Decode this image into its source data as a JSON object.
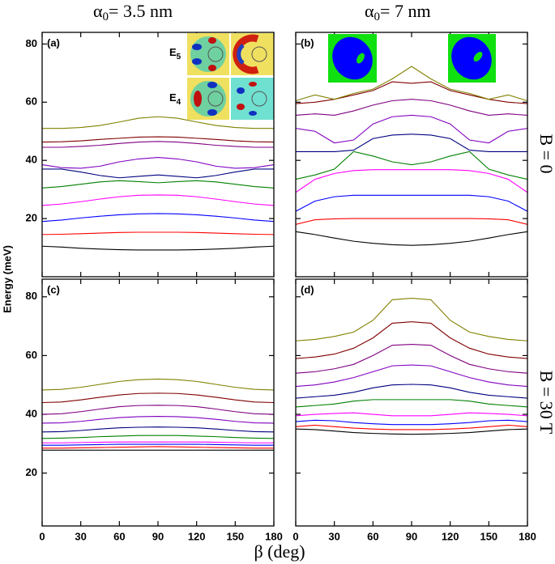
{
  "column_titles": [
    {
      "symbol": "α",
      "subscript": "0",
      "text": "= 3.5 nm"
    },
    {
      "symbol": "α",
      "subscript": "0",
      "text": "= 7 nm"
    }
  ],
  "row_titles": [
    "B = 0",
    "B = 30 T"
  ],
  "y_label": "Energy (meV)",
  "x_label": "β (deg)",
  "inset_labels": [
    {
      "text": "E",
      "subscript": "5"
    },
    {
      "text": "E",
      "subscript": "4"
    }
  ],
  "chart_data": [
    {
      "type": "line",
      "panel_label": "(a)",
      "x": [
        0,
        15,
        30,
        45,
        60,
        75,
        90,
        105,
        120,
        135,
        150,
        165,
        180
      ],
      "xlim": [
        0,
        180
      ],
      "xticks": [
        0,
        30,
        60,
        90,
        120,
        150,
        180
      ],
      "ylim": [
        0,
        84
      ],
      "yticks": [
        20,
        40,
        60,
        80
      ],
      "series": [
        {
          "color": "#000000",
          "values": [
            10.5,
            10.2,
            9.8,
            9.5,
            9.3,
            9.2,
            9.2,
            9.2,
            9.3,
            9.5,
            9.8,
            10.2,
            10.5
          ]
        },
        {
          "color": "#ff0000",
          "values": [
            14.5,
            14.6,
            14.8,
            15,
            15.2,
            15.3,
            15.3,
            15.3,
            15.2,
            15,
            14.8,
            14.6,
            14.5
          ]
        },
        {
          "color": "#0000ff",
          "values": [
            19,
            19.5,
            20.2,
            20.8,
            21.3,
            21.6,
            21.7,
            21.6,
            21.3,
            20.8,
            20.2,
            19.5,
            19
          ]
        },
        {
          "color": "#ff00ff",
          "values": [
            24.5,
            25,
            25.8,
            26.7,
            27.5,
            28,
            28.1,
            28,
            27.5,
            26.7,
            25.8,
            25,
            24.5
          ]
        },
        {
          "color": "#008000",
          "values": [
            30.5,
            31,
            31.8,
            32.6,
            33,
            32.7,
            32.3,
            32.7,
            33,
            32.6,
            31.8,
            31,
            30.5
          ]
        },
        {
          "color": "#000080",
          "values": [
            37,
            37,
            36,
            34.8,
            34,
            34.5,
            35,
            34.5,
            34,
            34.8,
            36,
            37,
            37
          ]
        },
        {
          "color": "#8000c0",
          "values": [
            38.5,
            37.5,
            37.3,
            38,
            39.5,
            40.5,
            41,
            40.5,
            39.5,
            38,
            37.3,
            37.5,
            38.5
          ]
        },
        {
          "color": "#800080",
          "values": [
            44.5,
            44.5,
            44.8,
            45.2,
            45.8,
            46.3,
            46.5,
            46.3,
            45.8,
            45.2,
            44.8,
            44.5,
            44.5
          ]
        },
        {
          "color": "#800000",
          "values": [
            46.3,
            46.4,
            46.7,
            47.2,
            47.6,
            48,
            48.1,
            48,
            47.6,
            47.2,
            46.7,
            46.4,
            46.3
          ]
        },
        {
          "color": "#808000",
          "values": [
            51,
            51,
            51.3,
            52,
            53.2,
            54.5,
            55,
            54.5,
            53.2,
            52,
            51.3,
            51,
            51
          ]
        }
      ]
    },
    {
      "type": "line",
      "panel_label": "(b)",
      "x": [
        0,
        15,
        30,
        45,
        60,
        75,
        90,
        105,
        120,
        135,
        150,
        165,
        180
      ],
      "xlim": [
        0,
        180
      ],
      "xticks": [
        0,
        30,
        60,
        90,
        120,
        150,
        180
      ],
      "ylim": [
        0,
        84
      ],
      "yticks": [
        20,
        40,
        60,
        80
      ],
      "series": [
        {
          "color": "#000000",
          "values": [
            15.5,
            14.5,
            13.3,
            12.2,
            11.5,
            11,
            10.8,
            11,
            11.5,
            12.2,
            13.3,
            14.5,
            15.5
          ]
        },
        {
          "color": "#ff0000",
          "values": [
            18,
            19.6,
            19.9,
            20,
            20,
            20,
            20,
            20,
            20,
            20,
            19.9,
            19.6,
            18
          ]
        },
        {
          "color": "#0000ff",
          "values": [
            22.5,
            26,
            27.5,
            28,
            28,
            28,
            28,
            28,
            28,
            28,
            27.5,
            26,
            22.5
          ]
        },
        {
          "color": "#ff00ff",
          "values": [
            29,
            33.5,
            35.5,
            36.5,
            36.8,
            36.8,
            36.8,
            36.8,
            36.8,
            36.5,
            35.5,
            33.5,
            29
          ]
        },
        {
          "color": "#008000",
          "values": [
            33.5,
            35,
            37,
            43,
            41.5,
            39.5,
            38.5,
            39.5,
            41.5,
            43,
            37,
            35,
            33.5
          ]
        },
        {
          "color": "#000080",
          "values": [
            43,
            43,
            43,
            43.5,
            47.5,
            48.7,
            49,
            48.7,
            47.5,
            43.5,
            43,
            43,
            43
          ]
        },
        {
          "color": "#8000c0",
          "values": [
            51,
            50,
            46,
            47,
            52.5,
            55,
            55.5,
            55,
            52.5,
            47,
            46,
            50,
            51
          ]
        },
        {
          "color": "#800080",
          "values": [
            55.5,
            56,
            55.5,
            57,
            59,
            60.5,
            61,
            60.5,
            59,
            57,
            55.5,
            56,
            55.5
          ]
        },
        {
          "color": "#800000",
          "values": [
            59.5,
            60,
            61,
            62.5,
            64,
            67,
            66.5,
            67,
            64,
            62.5,
            61,
            60,
            59.5
          ]
        },
        {
          "color": "#808000",
          "values": [
            60.5,
            62.5,
            61,
            63,
            64.5,
            68,
            72.3,
            68,
            64.5,
            63,
            61,
            62.5,
            60.5
          ]
        }
      ]
    },
    {
      "type": "line",
      "panel_label": "(c)",
      "x": [
        0,
        15,
        30,
        45,
        60,
        75,
        90,
        105,
        120,
        135,
        150,
        165,
        180
      ],
      "xlim": [
        0,
        180
      ],
      "xticks": [
        0,
        30,
        60,
        90,
        120,
        150,
        180
      ],
      "ylim": [
        2,
        86
      ],
      "yticks": [
        20,
        40,
        60,
        80
      ],
      "series": [
        {
          "color": "#000000",
          "values": [
            27.8,
            27.8,
            27.8,
            27.8,
            27.8,
            27.8,
            27.8,
            27.8,
            27.8,
            27.8,
            27.8,
            27.8,
            27.8
          ]
        },
        {
          "color": "#ff0000",
          "values": [
            28.5,
            28.5,
            28.6,
            28.7,
            28.8,
            28.9,
            29,
            28.9,
            28.8,
            28.7,
            28.6,
            28.5,
            28.5
          ]
        },
        {
          "color": "#0000ff",
          "values": [
            29.5,
            29.5,
            29.6,
            29.7,
            29.8,
            29.8,
            29.8,
            29.8,
            29.8,
            29.7,
            29.6,
            29.5,
            29.5
          ]
        },
        {
          "color": "#ff00ff",
          "values": [
            30.3,
            30.3,
            30.4,
            30.5,
            30.6,
            30.6,
            30.6,
            30.6,
            30.6,
            30.5,
            30.4,
            30.3,
            30.3
          ]
        },
        {
          "color": "#008000",
          "values": [
            31.8,
            31.9,
            32.1,
            32.4,
            32.6,
            32.8,
            32.8,
            32.8,
            32.6,
            32.4,
            32.1,
            31.9,
            31.8
          ]
        },
        {
          "color": "#000080",
          "values": [
            34,
            34.1,
            34.5,
            35,
            35.4,
            35.6,
            35.7,
            35.6,
            35.4,
            35,
            34.5,
            34.1,
            34
          ]
        },
        {
          "color": "#8000c0",
          "values": [
            37,
            37.1,
            37.6,
            38.3,
            38.9,
            39.2,
            39.3,
            39.2,
            38.9,
            38.3,
            37.6,
            37.1,
            37
          ]
        },
        {
          "color": "#800080",
          "values": [
            40,
            40.2,
            40.9,
            41.8,
            42.6,
            43,
            43.1,
            43,
            42.6,
            41.8,
            40.9,
            40.2,
            40
          ]
        },
        {
          "color": "#800000",
          "values": [
            44,
            44.2,
            44.9,
            45.8,
            46.6,
            47.1,
            47.2,
            47.1,
            46.6,
            45.8,
            44.9,
            44.2,
            44
          ]
        },
        {
          "color": "#808000",
          "values": [
            48.3,
            48.5,
            49.2,
            50.2,
            51.2,
            51.8,
            52,
            51.8,
            51.2,
            50.2,
            49.2,
            48.5,
            48.3
          ]
        }
      ]
    },
    {
      "type": "line",
      "panel_label": "(d)",
      "x": [
        0,
        15,
        30,
        45,
        60,
        75,
        90,
        105,
        120,
        135,
        150,
        165,
        180
      ],
      "xlim": [
        0,
        180
      ],
      "xticks": [
        0,
        30,
        60,
        90,
        120,
        150,
        180
      ],
      "ylim": [
        2,
        86
      ],
      "yticks": [
        20,
        40,
        60,
        80
      ],
      "series": [
        {
          "color": "#000000",
          "values": [
            35,
            34.8,
            34.3,
            33.8,
            33.5,
            33.3,
            33.2,
            33.3,
            33.5,
            33.8,
            34.3,
            34.8,
            35
          ]
        },
        {
          "color": "#ff0000",
          "values": [
            35.8,
            36.3,
            35.8,
            35.3,
            35,
            34.8,
            34.8,
            34.8,
            35,
            35.3,
            35.8,
            36.3,
            35.8
          ]
        },
        {
          "color": "#0000ff",
          "values": [
            37.5,
            38,
            37.8,
            37.2,
            36.8,
            36.5,
            36.5,
            36.5,
            36.8,
            37.2,
            37.8,
            38,
            37.5
          ]
        },
        {
          "color": "#ff00ff",
          "values": [
            39.5,
            40,
            40.3,
            40.5,
            40,
            39.5,
            39.5,
            39.5,
            40,
            40.5,
            40.3,
            40,
            39.5
          ]
        },
        {
          "color": "#008000",
          "values": [
            42.5,
            43,
            43.5,
            44.5,
            45,
            45,
            45,
            45,
            45,
            44.5,
            43.5,
            43,
            42.5
          ]
        },
        {
          "color": "#000080",
          "values": [
            45.5,
            46,
            46.5,
            47.5,
            49,
            50,
            50.2,
            50,
            49,
            47.5,
            46.5,
            46,
            45.5
          ]
        },
        {
          "color": "#8000c0",
          "values": [
            49.5,
            50,
            51,
            52.5,
            54.5,
            56.5,
            56.8,
            56.5,
            54.5,
            52.5,
            51,
            50,
            49.5
          ]
        },
        {
          "color": "#800080",
          "values": [
            54,
            54.5,
            55.5,
            57,
            60,
            63.5,
            63.8,
            63.5,
            60,
            57,
            55.5,
            54.5,
            54
          ]
        },
        {
          "color": "#800000",
          "values": [
            59,
            59.5,
            60.5,
            62.5,
            66,
            71,
            71.5,
            71,
            66,
            62.5,
            60.5,
            59.5,
            59
          ]
        },
        {
          "color": "#808000",
          "values": [
            65,
            65.5,
            66.5,
            68,
            72,
            79,
            79.5,
            79,
            72,
            68,
            66.5,
            65.5,
            65
          ]
        }
      ]
    }
  ]
}
